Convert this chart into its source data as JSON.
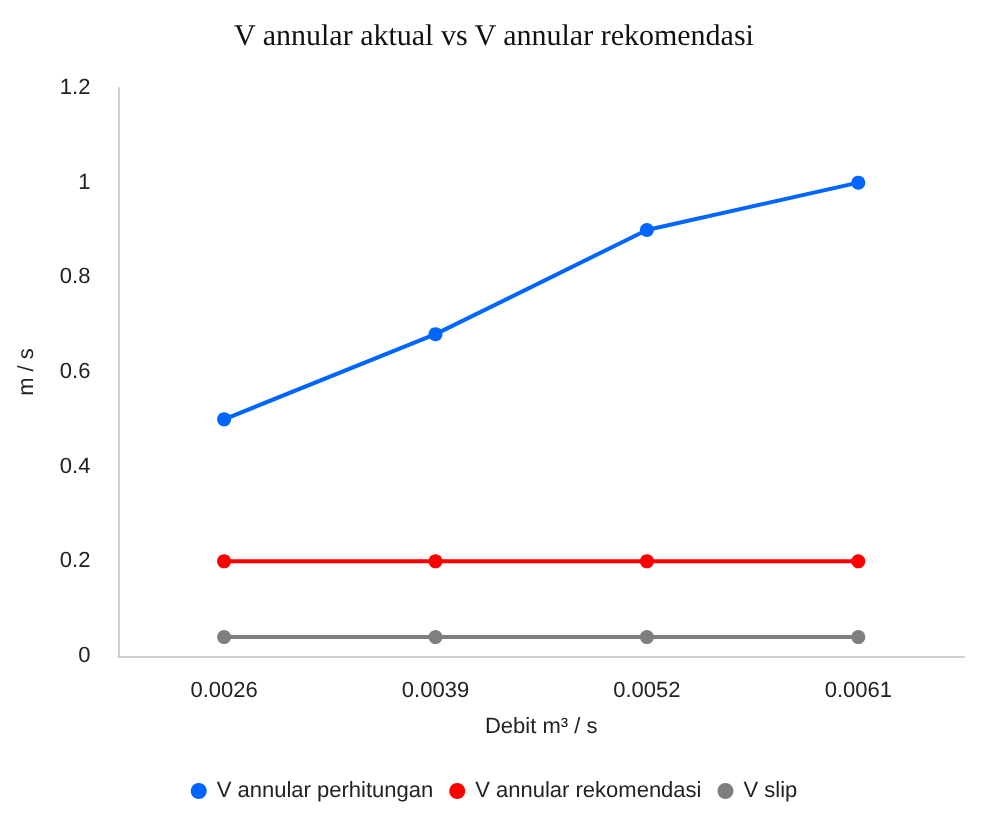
{
  "chart_data": {
    "type": "line",
    "title": "V annular aktual vs V annular rekomendasi",
    "xlabel": "Debit m³ / s",
    "ylabel": "m / s",
    "categories": [
      "0.0026",
      "0.0039",
      "0.0052",
      "0.0061"
    ],
    "series": [
      {
        "name": "V annular perhitungan",
        "color": "#0066ff",
        "values": [
          0.5,
          0.68,
          0.9,
          1.0
        ]
      },
      {
        "name": "V annular rekomendasi",
        "color": "#ff0000",
        "values": [
          0.2,
          0.2,
          0.2,
          0.2
        ]
      },
      {
        "name": "V slip",
        "color": "#7f7f7f",
        "values": [
          0.04,
          0.04,
          0.04,
          0.04
        ]
      }
    ],
    "ylim": [
      0,
      1.2
    ],
    "yticks": [
      0,
      0.2,
      0.4,
      0.6,
      0.8,
      1,
      1.2
    ],
    "grid": false,
    "legend": "bottom",
    "marker": "circle",
    "line_style": "solid"
  }
}
